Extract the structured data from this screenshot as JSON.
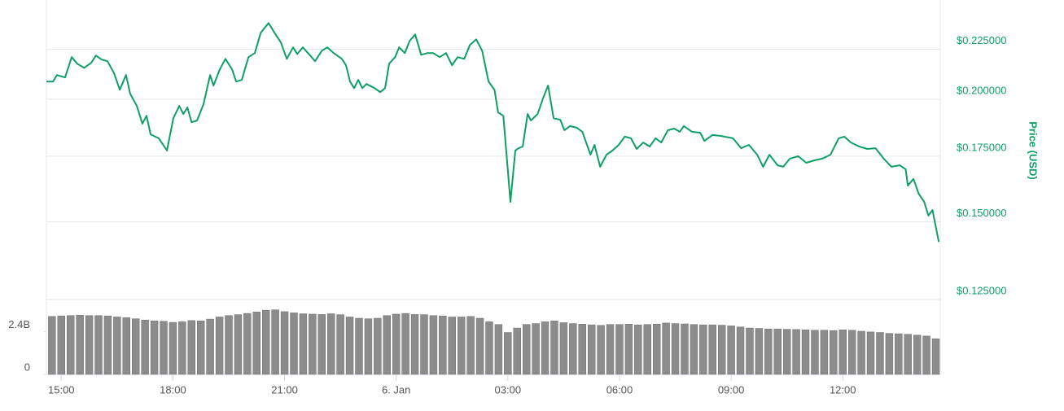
{
  "chart_data": [
    {
      "type": "line",
      "color": "#0f9f64",
      "log_scale": true,
      "grid": true,
      "ylabel": "Price (USD)",
      "xlim": [
        14.6,
        38.62
      ],
      "ylim": [
        0.125,
        0.252
      ],
      "yticks": [
        {
          "value": 0.125,
          "label": "$0.125000"
        },
        {
          "value": 0.15,
          "label": "$0.150000"
        },
        {
          "value": 0.175,
          "label": "$0.175000"
        },
        {
          "value": 0.2,
          "label": "$0.200000"
        },
        {
          "value": 0.225,
          "label": "$0.225000"
        }
      ],
      "x": [
        14.6,
        14.78,
        14.88,
        15.1,
        15.28,
        15.43,
        15.61,
        15.8,
        15.93,
        16.09,
        16.24,
        16.42,
        16.57,
        16.74,
        16.85,
        17.03,
        17.18,
        17.29,
        17.4,
        17.62,
        17.84,
        18.01,
        18.17,
        18.28,
        18.39,
        18.5,
        18.65,
        18.82,
        19.0,
        19.09,
        19.26,
        19.41,
        19.59,
        19.7,
        19.85,
        20.03,
        20.2,
        20.36,
        20.57,
        20.73,
        20.9,
        21.06,
        21.23,
        21.34,
        21.49,
        21.67,
        21.82,
        22.0,
        22.15,
        22.32,
        22.54,
        22.65,
        22.76,
        22.87,
        22.98,
        23.09,
        23.2,
        23.42,
        23.57,
        23.7,
        23.81,
        23.97,
        24.08,
        24.23,
        24.36,
        24.51,
        24.67,
        24.84,
        24.99,
        25.17,
        25.34,
        25.5,
        25.65,
        25.83,
        25.98,
        26.15,
        26.31,
        26.48,
        26.64,
        26.74,
        26.88,
        27.07,
        27.2,
        27.29,
        27.4,
        27.53,
        27.62,
        27.8,
        27.95,
        28.08,
        28.23,
        28.41,
        28.52,
        28.67,
        28.85,
        29.0,
        29.22,
        29.33,
        29.48,
        29.65,
        29.81,
        29.98,
        30.14,
        30.31,
        30.46,
        30.64,
        30.81,
        30.97,
        31.12,
        31.3,
        31.47,
        31.62,
        31.73,
        31.95,
        32.17,
        32.28,
        32.5,
        32.72,
        33.05,
        33.27,
        33.48,
        33.7,
        33.86,
        34.03,
        34.25,
        34.4,
        34.58,
        34.8,
        35.02,
        35.24,
        35.45,
        35.67,
        35.89,
        36.04,
        36.22,
        36.44,
        36.66,
        36.88,
        37.1,
        37.31,
        37.53,
        37.69,
        37.75,
        37.9,
        38.04,
        38.19,
        38.3,
        38.41,
        38.58
      ],
      "values": [
        0.2085,
        0.2085,
        0.2117,
        0.2105,
        0.2208,
        0.2174,
        0.2153,
        0.2178,
        0.2216,
        0.2195,
        0.2187,
        0.2125,
        0.2045,
        0.2117,
        0.2026,
        0.1969,
        0.1888,
        0.1924,
        0.1842,
        0.1825,
        0.1773,
        0.1913,
        0.1969,
        0.1932,
        0.1962,
        0.1895,
        0.1903,
        0.1976,
        0.2117,
        0.2065,
        0.2145,
        0.2199,
        0.2145,
        0.2085,
        0.2093,
        0.2208,
        0.2229,
        0.2338,
        0.2392,
        0.2338,
        0.2285,
        0.2199,
        0.2259,
        0.2224,
        0.2259,
        0.222,
        0.2187,
        0.2241,
        0.2259,
        0.2229,
        0.2199,
        0.2166,
        0.2085,
        0.2053,
        0.2093,
        0.2053,
        0.2073,
        0.2053,
        0.2034,
        0.2053,
        0.2174,
        0.2208,
        0.2259,
        0.2229,
        0.2293,
        0.2329,
        0.222,
        0.2229,
        0.2229,
        0.2208,
        0.2229,
        0.2166,
        0.2208,
        0.2199,
        0.2272,
        0.2302,
        0.2241,
        0.2085,
        0.2045,
        0.1939,
        0.1924,
        0.1572,
        0.1773,
        0.1783,
        0.179,
        0.1932,
        0.1903,
        0.1932,
        0.2007,
        0.2065,
        0.1913,
        0.1906,
        0.186,
        0.1878,
        0.1871,
        0.1853,
        0.1756,
        0.1797,
        0.1707,
        0.1756,
        0.1773,
        0.1797,
        0.1832,
        0.1825,
        0.178,
        0.1807,
        0.179,
        0.1825,
        0.1807,
        0.186,
        0.1867,
        0.1853,
        0.1878,
        0.1853,
        0.1849,
        0.1814,
        0.1839,
        0.1835,
        0.1825,
        0.1783,
        0.1797,
        0.1756,
        0.1707,
        0.1756,
        0.1713,
        0.1707,
        0.174,
        0.175,
        0.1723,
        0.1733,
        0.174,
        0.1756,
        0.1825,
        0.1832,
        0.1807,
        0.179,
        0.178,
        0.1783,
        0.174,
        0.1707,
        0.1713,
        0.1697,
        0.1633,
        0.1659,
        0.1602,
        0.1572,
        0.1522,
        0.1542,
        0.1431
      ]
    },
    {
      "type": "bar",
      "color": "#8c8c8c",
      "xlim": [
        14.6,
        38.62
      ],
      "ylim": [
        0,
        4200000000.0
      ],
      "xticks": [
        {
          "value": 15,
          "label": "15:00"
        },
        {
          "value": 18,
          "label": "18:00"
        },
        {
          "value": 21,
          "label": "21:00"
        },
        {
          "value": 24,
          "label": "6. Jan"
        },
        {
          "value": 27,
          "label": "03:00"
        },
        {
          "value": 30,
          "label": "06:00"
        },
        {
          "value": 33,
          "label": "09:00"
        },
        {
          "value": 36,
          "label": "12:00"
        }
      ],
      "yticks": [
        0,
        {
          "value": 2400000000.0,
          "label": "2.4B"
        }
      ],
      "x": [
        14.75,
        15,
        15.25,
        15.5,
        15.75,
        16,
        16.25,
        16.5,
        16.75,
        17,
        17.25,
        17.5,
        17.75,
        18,
        18.25,
        18.5,
        18.75,
        19,
        19.25,
        19.5,
        19.75,
        20,
        20.25,
        20.5,
        20.75,
        21,
        21.25,
        21.5,
        21.75,
        22,
        22.25,
        22.5,
        22.75,
        23,
        23.25,
        23.5,
        23.75,
        24,
        24.25,
        24.5,
        24.75,
        25,
        25.25,
        25.5,
        25.75,
        26,
        26.25,
        26.5,
        26.75,
        27,
        27.25,
        27.5,
        27.75,
        28,
        28.25,
        28.5,
        28.75,
        29,
        29.25,
        29.5,
        29.75,
        30,
        30.25,
        30.5,
        30.75,
        31,
        31.25,
        31.5,
        31.75,
        32,
        32.25,
        32.5,
        32.75,
        33,
        33.25,
        33.5,
        33.75,
        34,
        34.25,
        34.5,
        34.75,
        35,
        35.25,
        35.5,
        35.75,
        36,
        36.25,
        36.5,
        36.75,
        37,
        37.25,
        37.5,
        37.75,
        38,
        38.25,
        38.5
      ],
      "values": [
        3250000000.0,
        3280000000.0,
        3300000000.0,
        3320000000.0,
        3300000000.0,
        3300000000.0,
        3280000000.0,
        3220000000.0,
        3180000000.0,
        3120000000.0,
        3050000000.0,
        3000000000.0,
        2980000000.0,
        2920000000.0,
        2950000000.0,
        3020000000.0,
        3000000000.0,
        3100000000.0,
        3220000000.0,
        3300000000.0,
        3350000000.0,
        3420000000.0,
        3500000000.0,
        3600000000.0,
        3620000000.0,
        3520000000.0,
        3450000000.0,
        3400000000.0,
        3380000000.0,
        3360000000.0,
        3400000000.0,
        3350000000.0,
        3220000000.0,
        3150000000.0,
        3120000000.0,
        3150000000.0,
        3300000000.0,
        3380000000.0,
        3420000000.0,
        3360000000.0,
        3350000000.0,
        3300000000.0,
        3280000000.0,
        3220000000.0,
        3220000000.0,
        3250000000.0,
        3150000000.0,
        2950000000.0,
        2800000000.0,
        2350000000.0,
        2600000000.0,
        2800000000.0,
        2850000000.0,
        2950000000.0,
        3000000000.0,
        2900000000.0,
        2850000000.0,
        2820000000.0,
        2780000000.0,
        2750000000.0,
        2800000000.0,
        2800000000.0,
        2820000000.0,
        2780000000.0,
        2800000000.0,
        2820000000.0,
        2880000000.0,
        2850000000.0,
        2830000000.0,
        2800000000.0,
        2780000000.0,
        2780000000.0,
        2760000000.0,
        2720000000.0,
        2660000000.0,
        2600000000.0,
        2580000000.0,
        2550000000.0,
        2550000000.0,
        2530000000.0,
        2520000000.0,
        2500000000.0,
        2480000000.0,
        2480000000.0,
        2460000000.0,
        2500000000.0,
        2480000000.0,
        2420000000.0,
        2380000000.0,
        2350000000.0,
        2300000000.0,
        2280000000.0,
        2250000000.0,
        2200000000.0,
        2150000000.0,
        2000000000.0
      ]
    }
  ]
}
